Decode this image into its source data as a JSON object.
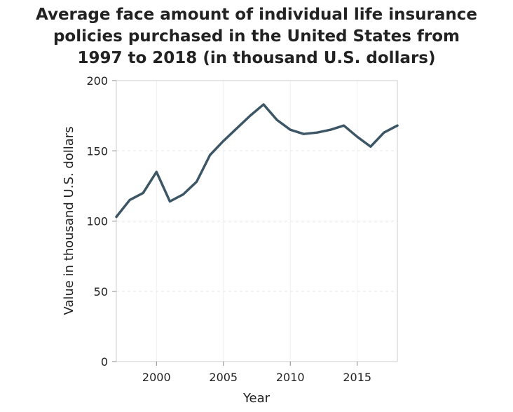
{
  "chart_data": {
    "type": "line",
    "title_lines": [
      "Average face amount of individual life insurance",
      "policies purchased in the United States from",
      "1997 to 2018 (in thousand U.S. dollars)"
    ],
    "xlabel": "Year",
    "ylabel": "Value in thousand U.S. dollars",
    "xlim": [
      1997,
      2018
    ],
    "ylim": [
      0,
      200
    ],
    "x_ticks": [
      2000,
      2005,
      2010,
      2015
    ],
    "y_ticks": [
      0,
      50,
      100,
      150,
      200
    ],
    "grid": true,
    "line_color": "#3d5666",
    "series": [
      {
        "x": [
          1997,
          1998,
          1999,
          2000,
          2001,
          2002,
          2003,
          2004,
          2005,
          2006,
          2007,
          2008,
          2009,
          2010,
          2011,
          2012,
          2013,
          2014,
          2015,
          2016,
          2017,
          2018
        ],
        "values": [
          103,
          115,
          120,
          135,
          114,
          119,
          128,
          147,
          157,
          166,
          175,
          183,
          172,
          165,
          162,
          163,
          165,
          168,
          160,
          153,
          163,
          168
        ]
      }
    ]
  }
}
